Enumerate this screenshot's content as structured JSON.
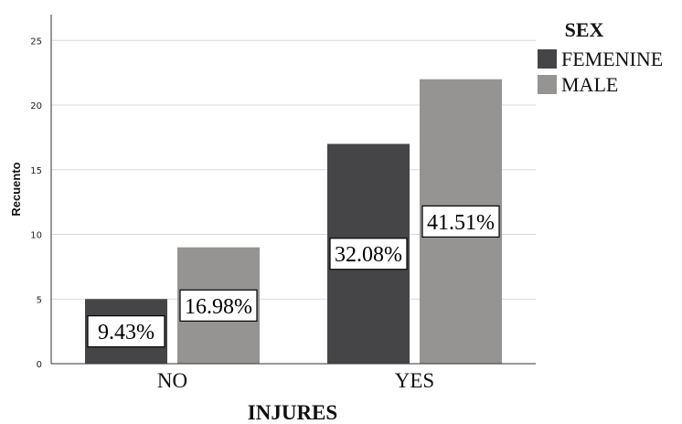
{
  "chart_data": {
    "type": "bar",
    "categories": [
      "NO",
      "YES"
    ],
    "series": [
      {
        "name": "FEMENINE",
        "values": [
          5,
          17
        ],
        "labels": [
          "9.43%",
          "32.08%"
        ],
        "color": "#454547"
      },
      {
        "name": "MALE",
        "values": [
          9,
          22
        ],
        "labels": [
          "16.98%",
          "41.51%"
        ],
        "color": "#969393"
      }
    ],
    "xlabel": "INJURES",
    "ylabel": "Recuento",
    "ylim": [
      0,
      27
    ],
    "yticks": [
      0,
      5,
      10,
      15,
      20,
      25
    ],
    "grid": true,
    "legend": {
      "title": "SEX",
      "position": "top-right"
    }
  }
}
